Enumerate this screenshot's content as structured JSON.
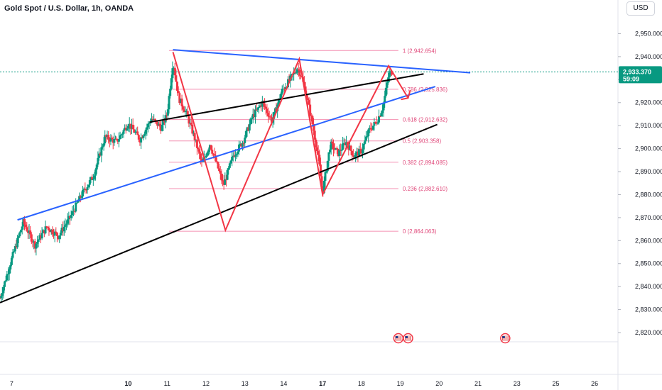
{
  "header": {
    "title": "Gold Spot / U.S. Dollar, 1h, OANDA",
    "currency": "USD"
  },
  "chart_data": {
    "type": "candlestick",
    "symbol": "Gold Spot / U.S. Dollar",
    "timeframe": "1h",
    "source": "OANDA",
    "currency": "USD",
    "ylim": [
      2816,
      2956
    ],
    "y_ticks": [
      2820,
      2830,
      2840,
      2850,
      2860,
      2870,
      2880,
      2890,
      2900,
      2910,
      2920,
      2930,
      2940,
      2950
    ],
    "y_tick_labels": [
      "2,820.000",
      "2,830.000",
      "2,840.000",
      "2,850.000",
      "2,860.000",
      "2,870.000",
      "2,880.000",
      "2,890.000",
      "2,900.000",
      "2,910.000",
      "2,920.000",
      "2,930.000",
      "2,940.000",
      "2,950.000"
    ],
    "x_ticks": [
      {
        "label": "7",
        "x": 7
      },
      {
        "label": "10",
        "x": 10
      },
      {
        "label": "11",
        "x": 11
      },
      {
        "label": "12",
        "x": 12
      },
      {
        "label": "13",
        "x": 13
      },
      {
        "label": "14",
        "x": 14
      },
      {
        "label": "17",
        "x": 15
      },
      {
        "label": "18",
        "x": 16
      },
      {
        "label": "19",
        "x": 17
      },
      {
        "label": "20",
        "x": 18
      },
      {
        "label": "21",
        "x": 19
      },
      {
        "label": "23",
        "x": 20
      },
      {
        "label": "25",
        "x": 21
      },
      {
        "label": "26",
        "x": 22
      }
    ],
    "xlim": [
      6.7,
      22.6
    ],
    "current_price": {
      "value": 2933.37,
      "label": "2,933.370",
      "countdown": "59:09"
    },
    "fib_levels": [
      {
        "ratio": "1",
        "value": 2942.654,
        "label": "1 (2,942.654)"
      },
      {
        "ratio": "0.786",
        "value": 2925.836,
        "label": "0.786 (2,925.836)"
      },
      {
        "ratio": "0.618",
        "value": 2912.632,
        "label": "0.618 (2,912.632)"
      },
      {
        "ratio": "0.5",
        "value": 2903.358,
        "label": "0.5 (2,903.358)"
      },
      {
        "ratio": "0.382",
        "value": 2894.085,
        "label": "0.382 (2,894.085)"
      },
      {
        "ratio": "0.236",
        "value": 2882.61,
        "label": "0.236 (2,882.610)"
      },
      {
        "ratio": "0",
        "value": 2864.063,
        "label": "0 (2,864.063)"
      }
    ],
    "fib_x_range": [
      11.05,
      16.95
    ],
    "trendlines": [
      {
        "color": "#2962ff",
        "points": [
          [
            11.15,
            2943
          ],
          [
            18.8,
            2933
          ]
        ]
      },
      {
        "color": "#2962ff",
        "points": [
          [
            7.15,
            2869
          ],
          [
            17.9,
            2927
          ]
        ]
      },
      {
        "color": "#000000",
        "points": [
          [
            10.55,
            2911.5
          ],
          [
            17.6,
            2932.5
          ]
        ]
      },
      {
        "color": "#000000",
        "points": [
          [
            6.7,
            2833
          ],
          [
            17.95,
            2910.5
          ]
        ]
      }
    ],
    "zigzag": {
      "color": "#f23645",
      "points": [
        [
          11.15,
          2942
        ],
        [
          12.5,
          2864.5
        ],
        [
          14.4,
          2939
        ],
        [
          15.0,
          2880
        ],
        [
          16.7,
          2936
        ],
        [
          17.2,
          2922
        ]
      ]
    },
    "price_path": [
      [
        6.7,
        2835
      ],
      [
        7.0,
        2852
      ],
      [
        7.3,
        2868
      ],
      [
        7.6,
        2858
      ],
      [
        7.9,
        2866
      ],
      [
        8.2,
        2862
      ],
      [
        8.5,
        2870
      ],
      [
        8.8,
        2880
      ],
      [
        9.1,
        2888
      ],
      [
        9.4,
        2905
      ],
      [
        9.7,
        2903
      ],
      [
        10.0,
        2911
      ],
      [
        10.3,
        2904
      ],
      [
        10.6,
        2913
      ],
      [
        10.85,
        2909
      ],
      [
        11.0,
        2915
      ],
      [
        11.15,
        2938
      ],
      [
        11.3,
        2922
      ],
      [
        11.5,
        2915
      ],
      [
        11.7,
        2905
      ],
      [
        11.9,
        2893
      ],
      [
        12.1,
        2902
      ],
      [
        12.3,
        2892
      ],
      [
        12.45,
        2884
      ],
      [
        12.7,
        2897
      ],
      [
        12.95,
        2903
      ],
      [
        13.2,
        2914
      ],
      [
        13.45,
        2920
      ],
      [
        13.7,
        2912
      ],
      [
        13.95,
        2925
      ],
      [
        14.2,
        2931
      ],
      [
        14.35,
        2935
      ],
      [
        14.45,
        2932
      ],
      [
        14.6,
        2922
      ],
      [
        14.75,
        2910
      ],
      [
        14.9,
        2895
      ],
      [
        15.0,
        2881
      ],
      [
        15.2,
        2902
      ],
      [
        15.4,
        2898
      ],
      [
        15.6,
        2903
      ],
      [
        15.8,
        2897
      ],
      [
        16.0,
        2899
      ],
      [
        16.2,
        2908
      ],
      [
        16.4,
        2912
      ],
      [
        16.55,
        2918
      ],
      [
        16.7,
        2932
      ],
      [
        16.78,
        2933.4
      ]
    ],
    "event_markers": [
      {
        "name": "us-flag-icon",
        "x": 16.95
      },
      {
        "name": "us-flag-icon",
        "x": 17.2
      },
      {
        "name": "us-flag-icon",
        "x": 19.7
      }
    ]
  }
}
